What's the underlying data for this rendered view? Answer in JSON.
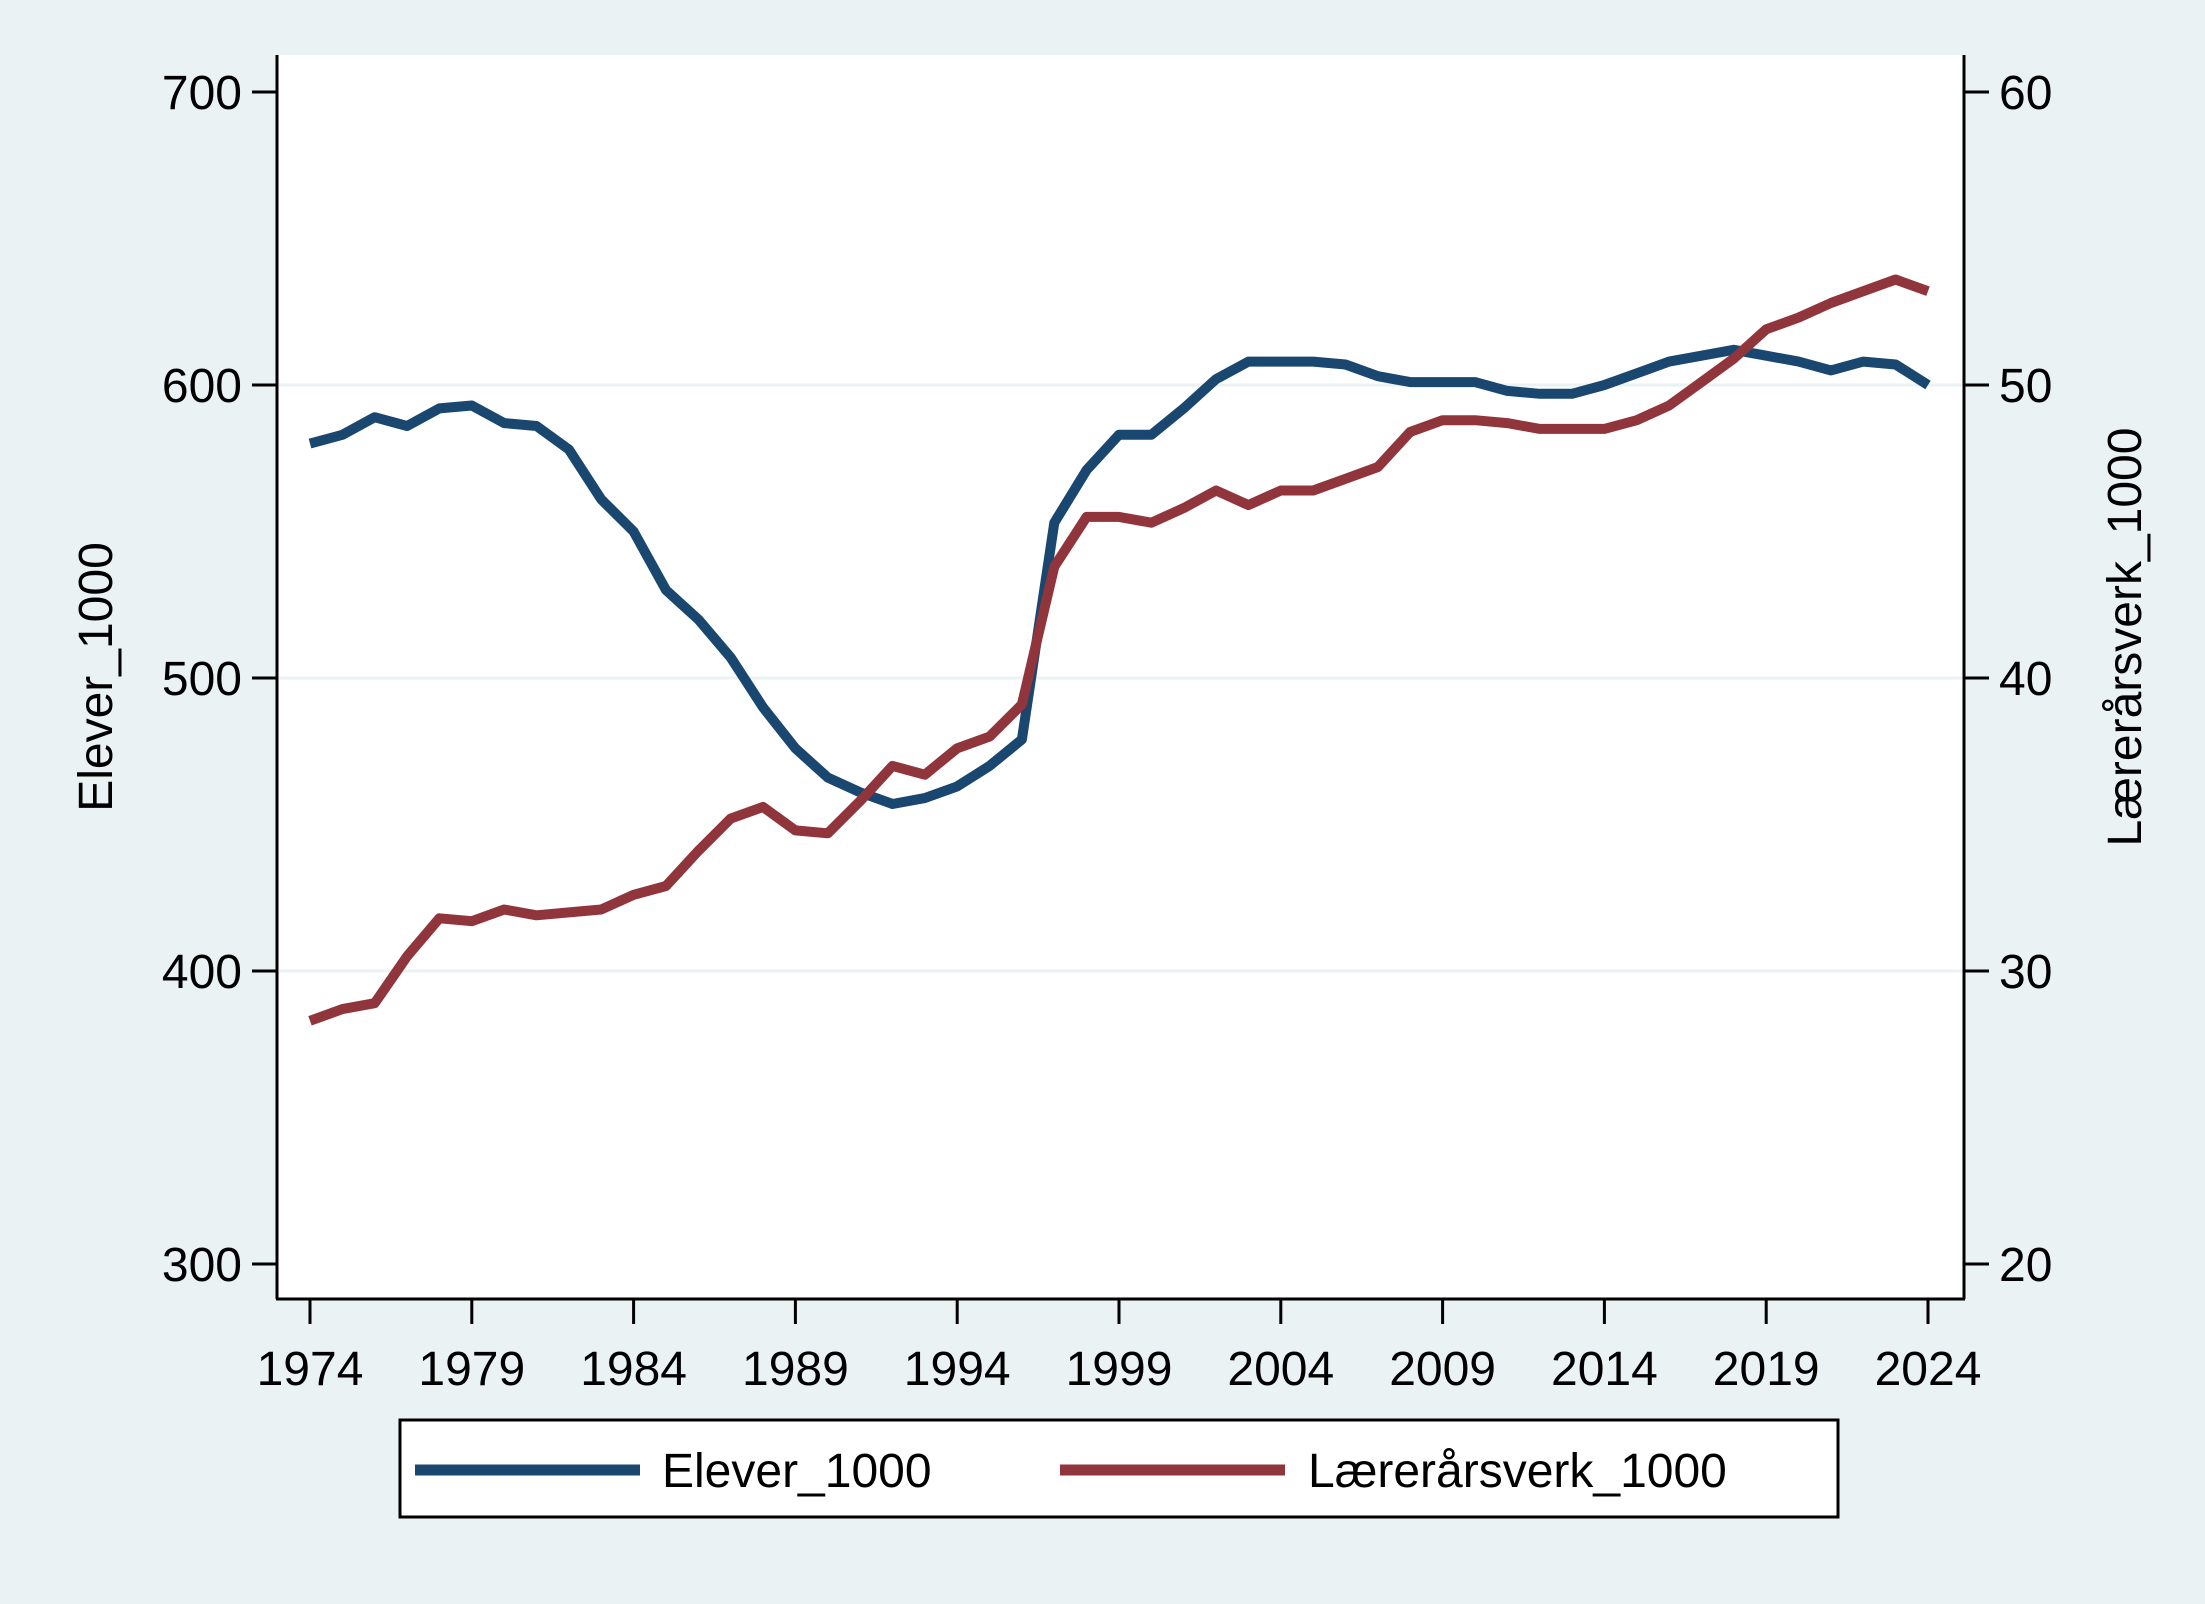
{
  "chart_data": {
    "type": "line",
    "title": "",
    "xlabel": "",
    "ylabel": "Elever_1000",
    "y2label": "Lærerårsverk_1000",
    "xlim": [
      1974,
      2024
    ],
    "ylim": [
      300,
      700
    ],
    "y2lim": [
      20,
      60
    ],
    "xticks": [
      "1974",
      "1979",
      "1984",
      "1989",
      "1994",
      "1999",
      "2004",
      "2009",
      "2014",
      "2019",
      "2024"
    ],
    "yticks": [
      "300",
      "400",
      "500",
      "600",
      "700"
    ],
    "y2ticks": [
      "20",
      "30",
      "40",
      "50",
      "60"
    ],
    "grid": true,
    "legend_position": "bottom",
    "x": [
      1974,
      1975,
      1976,
      1977,
      1978,
      1979,
      1980,
      1981,
      1982,
      1983,
      1984,
      1985,
      1986,
      1987,
      1988,
      1989,
      1990,
      1991,
      1992,
      1993,
      1994,
      1995,
      1996,
      1997,
      1998,
      1999,
      2000,
      2001,
      2002,
      2003,
      2004,
      2005,
      2006,
      2007,
      2008,
      2009,
      2010,
      2011,
      2012,
      2013,
      2014,
      2015,
      2016,
      2017,
      2018,
      2019,
      2020,
      2021,
      2022,
      2023,
      2024
    ],
    "series": [
      {
        "name": "Elever_1000",
        "axis": "left",
        "color": "#1a476f",
        "values": [
          580,
          583,
          589,
          586,
          592,
          593,
          587,
          586,
          578,
          561,
          550,
          530,
          520,
          507,
          490,
          476,
          466,
          461,
          457,
          459,
          463,
          470,
          479,
          553,
          571,
          583,
          583,
          592,
          602,
          608,
          608,
          608,
          607,
          603,
          601,
          601,
          601,
          598,
          597,
          597,
          600,
          604,
          608,
          610,
          612,
          610,
          608,
          605,
          608,
          607,
          600
        ]
      },
      {
        "name": "Lærerårsverk_1000",
        "axis": "right",
        "color": "#90353b",
        "values": [
          28.3,
          28.7,
          28.9,
          30.5,
          31.8,
          31.7,
          32.1,
          31.9,
          32.0,
          32.1,
          32.6,
          32.9,
          34.1,
          35.2,
          35.6,
          34.8,
          34.7,
          35.8,
          37.0,
          36.7,
          37.6,
          38.0,
          39.1,
          43.8,
          45.5,
          45.5,
          45.3,
          45.8,
          46.4,
          45.9,
          46.4,
          46.4,
          46.8,
          47.2,
          48.4,
          48.8,
          48.8,
          48.7,
          48.5,
          48.5,
          48.5,
          48.8,
          49.3,
          50.1,
          50.9,
          51.9,
          52.3,
          52.8,
          53.2,
          53.6,
          53.2
        ]
      }
    ]
  }
}
